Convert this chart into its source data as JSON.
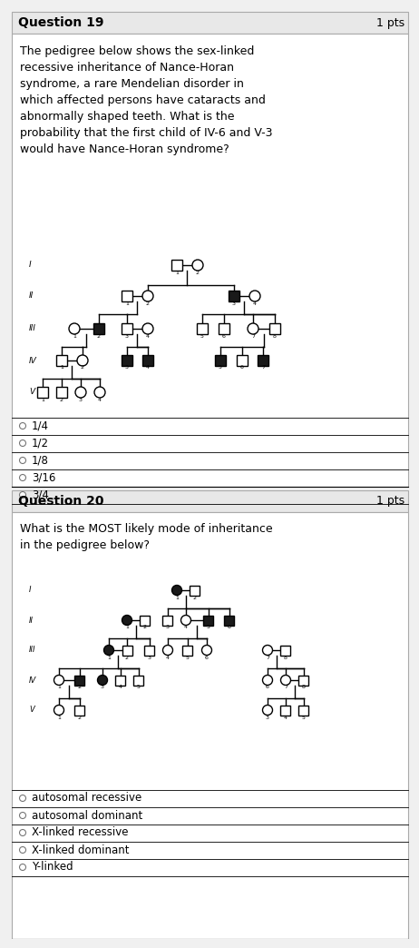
{
  "q19_title": "Question 19",
  "q19_pts": "1 pts",
  "q19_text": "The pedigree below shows the sex-linked\nrecessive inheritance of Nance-Horan\nsyndrome, a rare Mendelian disorder in\nwhich affected persons have cataracts and\nabnormally shaped teeth. What is the\nprobability that the first child of IV-6 and V-3\nwould have Nance-Horan syndrome?",
  "q19_options": [
    "1/4",
    "1/2",
    "1/8",
    "3/16",
    "3/4"
  ],
  "q20_title": "Question 20",
  "q20_pts": "1 pts",
  "q20_text": "What is the MOST likely mode of inheritance\nin the pedigree below?",
  "q20_options": [
    "autosomal recessive",
    "autosomal dominant",
    "X-linked recessive",
    "X-linked dominant",
    "Y-linked"
  ],
  "bg_color": "#ffffff",
  "header_color": "#e8e8e8",
  "border_color": "#aaaaaa",
  "text_color": "#000000",
  "filled_color": "#1a1a1a",
  "unfilled_color": "#ffffff"
}
